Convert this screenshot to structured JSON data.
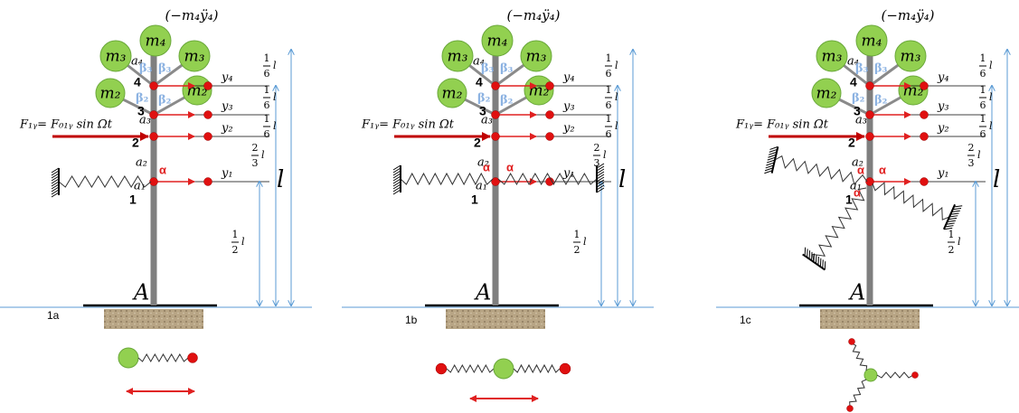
{
  "panels": [
    {
      "label": "1a",
      "inertia": "(−m₄ÿ₄)",
      "masses": [
        "m₄",
        "m₃",
        "m₃",
        "m₂",
        "m₂"
      ],
      "points": [
        "a₄",
        "a₃",
        "a₂",
        "a₁"
      ],
      "angles": [
        "β₃",
        "β₃",
        "β₂",
        "β₂"
      ],
      "nodes": [
        "4",
        "3",
        "2",
        "1"
      ],
      "displacements": [
        "y₄",
        "y₃",
        "y₂",
        "y₁"
      ],
      "heights": [
        {
          "num": "1",
          "den": "6",
          "var": "l"
        },
        {
          "num": "1",
          "den": "6",
          "var": "l"
        },
        {
          "num": "1",
          "den": "6",
          "var": "l"
        },
        {
          "num": "2",
          "den": "3",
          "var": "l"
        },
        {
          "num": "1",
          "den": "2",
          "var": "l"
        }
      ],
      "total": "l",
      "force": "F₁ᵧ= F₀₁ᵧ sin Ωt",
      "alphas": [
        "α"
      ],
      "base": "A"
    },
    {
      "label": "1b",
      "inertia": "(−m₄ÿ₄)",
      "masses": [
        "m₄",
        "m₃",
        "m₃",
        "m₂",
        "m₂"
      ],
      "points": [
        "a₄",
        "a₃",
        "a₂",
        "a₁"
      ],
      "angles": [
        "β₃",
        "β₃",
        "β₂",
        "β₂"
      ],
      "nodes": [
        "4",
        "3",
        "2",
        "1"
      ],
      "displacements": [
        "y₄",
        "y₃",
        "y₂",
        "y₁"
      ],
      "heights": [
        {
          "num": "1",
          "den": "6",
          "var": "l"
        },
        {
          "num": "1",
          "den": "6",
          "var": "l"
        },
        {
          "num": "1",
          "den": "6",
          "var": "l"
        },
        {
          "num": "2",
          "den": "3",
          "var": "l"
        },
        {
          "num": "1",
          "den": "2",
          "var": "l"
        }
      ],
      "total": "l",
      "force": "F₁ᵧ= F₀₁ᵧ sin Ωt",
      "alphas": [
        "α",
        "α"
      ],
      "base": "A"
    },
    {
      "label": "1c",
      "inertia": "(−m₄ÿ₄)",
      "masses": [
        "m₄",
        "m₃",
        "m₃",
        "m₂",
        "m₂"
      ],
      "points": [
        "a₄",
        "a₃",
        "a₂",
        "a₁"
      ],
      "angles": [
        "β₃",
        "β₃",
        "β₂",
        "β₂"
      ],
      "nodes": [
        "4",
        "3",
        "2",
        "1"
      ],
      "displacements": [
        "y₄",
        "y₃",
        "y₂",
        "y₁"
      ],
      "heights": [
        {
          "num": "1",
          "den": "6",
          "var": "l"
        },
        {
          "num": "1",
          "den": "6",
          "var": "l"
        },
        {
          "num": "1",
          "den": "6",
          "var": "l"
        },
        {
          "num": "2",
          "den": "3",
          "var": "l"
        },
        {
          "num": "1",
          "den": "2",
          "var": "l"
        }
      ],
      "total": "l",
      "force": "F₁ᵧ= F₀₁ᵧ sin Ωt",
      "alphas": [
        "α",
        "α",
        "α"
      ],
      "base": "A"
    }
  ]
}
